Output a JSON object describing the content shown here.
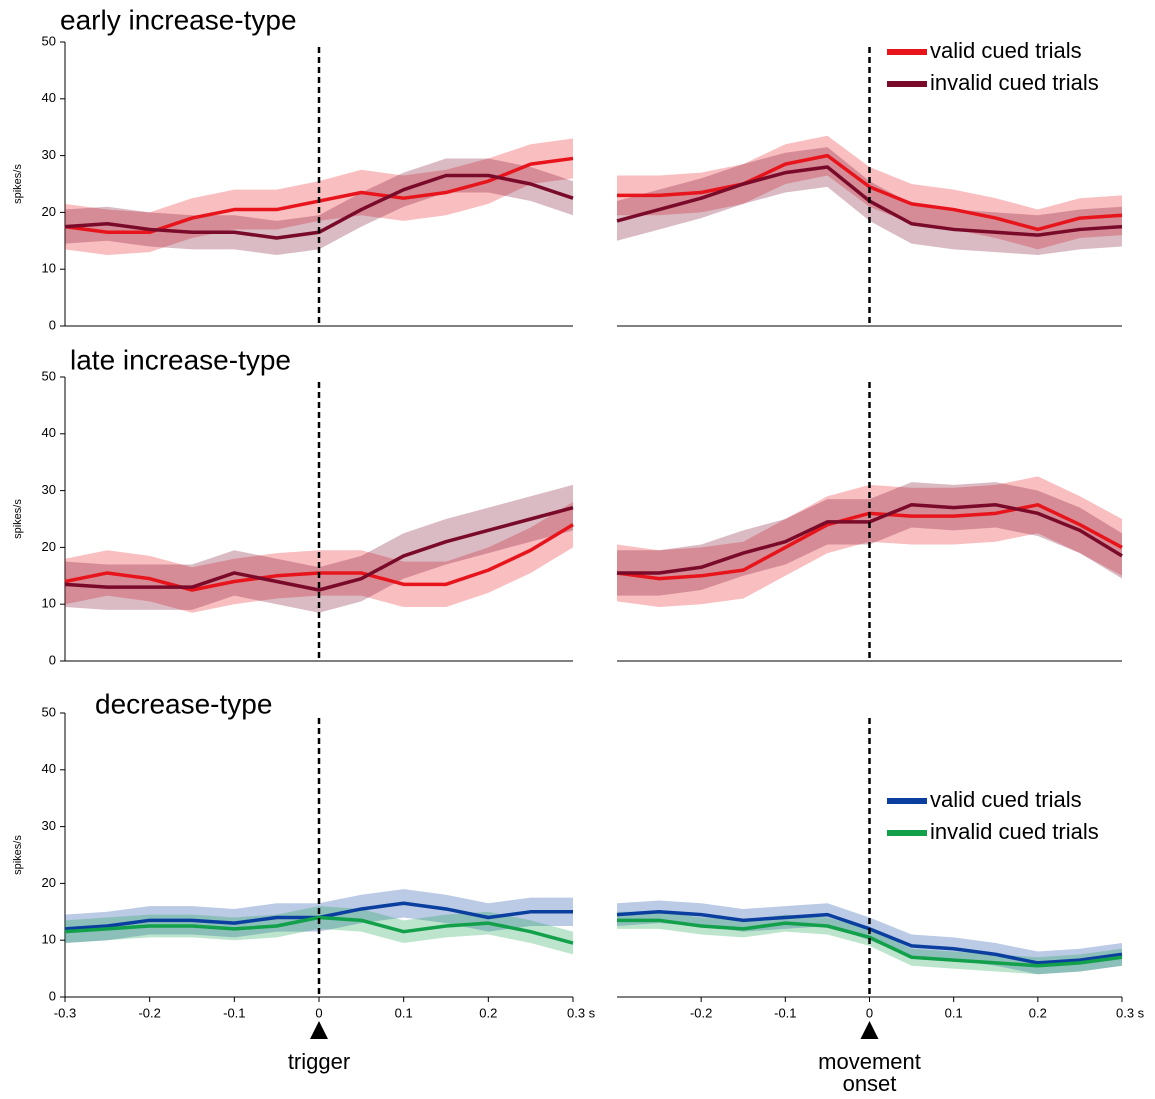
{
  "chart_data": [
    {
      "type": "line",
      "title": "early increase-type",
      "ylabel": "spikes/s",
      "x": [
        -0.3,
        -0.25,
        -0.2,
        -0.15,
        -0.1,
        -0.05,
        0,
        0.05,
        0.1,
        0.15,
        0.2,
        0.25,
        0.3
      ],
      "xlim": [
        -0.3,
        0.3
      ],
      "ylim": [
        0,
        50
      ],
      "yticks": [
        0,
        10,
        20,
        30,
        40,
        50
      ],
      "vline": 0,
      "series": [
        {
          "color": "#e8141c",
          "values": [
            17.5,
            16.5,
            16.5,
            19,
            20.5,
            20.5,
            22,
            23.5,
            22.5,
            23.5,
            25.5,
            28.5,
            29.5
          ],
          "error": [
            4,
            4,
            3.5,
            3.5,
            3.5,
            3.5,
            3.5,
            4,
            4,
            4,
            4,
            3.5,
            3.5
          ]
        },
        {
          "color": "#7a0a2a",
          "values": [
            17.5,
            18,
            17,
            16.5,
            16.5,
            15.5,
            16.5,
            20.5,
            24,
            26.5,
            26.5,
            25,
            22.5
          ],
          "error": [
            3,
            3,
            3,
            3,
            3,
            3,
            3,
            3,
            3,
            3,
            3,
            3,
            3
          ]
        }
      ]
    },
    {
      "type": "line",
      "x": [
        -0.3,
        -0.25,
        -0.2,
        -0.15,
        -0.1,
        -0.05,
        0,
        0.05,
        0.1,
        0.15,
        0.2,
        0.25,
        0.3
      ],
      "xlim": [
        -0.3,
        0.3
      ],
      "ylim": [
        0,
        50
      ],
      "vline": 0,
      "legend": "upper right",
      "series": [
        {
          "name": "valid cued trials",
          "color": "#e8141c",
          "values": [
            23,
            23,
            23.5,
            25,
            28.5,
            30,
            24.5,
            21.5,
            20.5,
            19,
            17,
            19,
            19.5
          ],
          "error": [
            3.5,
            3.5,
            3.5,
            3.5,
            3.5,
            3.5,
            3.5,
            3.5,
            3.5,
            3.5,
            3.5,
            3.5,
            3.5
          ]
        },
        {
          "name": "invalid cued trials",
          "color": "#7a0a2a",
          "values": [
            18.5,
            20.5,
            22.5,
            25,
            27,
            28,
            22,
            18,
            17,
            16.5,
            16,
            17,
            17.5
          ],
          "error": [
            3.5,
            3.5,
            3.5,
            3.5,
            3.5,
            3.5,
            3.5,
            3.5,
            3.5,
            3.5,
            3.5,
            3.5,
            3.5
          ]
        }
      ]
    },
    {
      "type": "line",
      "title": "late increase-type",
      "ylabel": "spikes/s",
      "x": [
        -0.3,
        -0.25,
        -0.2,
        -0.15,
        -0.1,
        -0.05,
        0,
        0.05,
        0.1,
        0.15,
        0.2,
        0.25,
        0.3
      ],
      "xlim": [
        -0.3,
        0.3
      ],
      "ylim": [
        0,
        50
      ],
      "yticks": [
        0,
        10,
        20,
        30,
        40,
        50
      ],
      "vline": 0,
      "series": [
        {
          "color": "#e8141c",
          "values": [
            14,
            15.5,
            14.5,
            12.5,
            14,
            15,
            15.5,
            15.5,
            13.5,
            13.5,
            16,
            19.5,
            24
          ],
          "error": [
            4,
            4,
            4,
            4,
            4,
            4,
            4,
            4,
            4,
            4,
            4,
            4,
            4
          ]
        },
        {
          "color": "#7a0a2a",
          "values": [
            13.5,
            13,
            13,
            13,
            15.5,
            14,
            12.5,
            14.5,
            18.5,
            21,
            23,
            25,
            27
          ],
          "error": [
            4,
            4,
            4,
            4,
            4,
            4,
            4,
            4,
            4,
            4,
            4,
            4,
            4
          ]
        }
      ]
    },
    {
      "type": "line",
      "x": [
        -0.3,
        -0.25,
        -0.2,
        -0.15,
        -0.1,
        -0.05,
        0,
        0.05,
        0.1,
        0.15,
        0.2,
        0.25,
        0.3
      ],
      "xlim": [
        -0.3,
        0.3
      ],
      "ylim": [
        0,
        50
      ],
      "vline": 0,
      "series": [
        {
          "color": "#e8141c",
          "values": [
            15.5,
            14.5,
            15,
            16,
            20,
            24,
            26,
            25.5,
            25.5,
            26,
            27.5,
            24,
            20
          ],
          "error": [
            5,
            5,
            5,
            5,
            5,
            5,
            5,
            5,
            5,
            5,
            5,
            5,
            5
          ]
        },
        {
          "color": "#7a0a2a",
          "values": [
            15.5,
            15.5,
            16.5,
            19,
            21,
            24.5,
            24.5,
            27.5,
            27,
            27.5,
            26,
            23,
            18.5
          ],
          "error": [
            4,
            4,
            4,
            4,
            4,
            4,
            4,
            4,
            4,
            4,
            4,
            4,
            4
          ]
        }
      ]
    },
    {
      "type": "line",
      "title": "decrease-type",
      "ylabel": "spikes/s",
      "annotation": "trigger",
      "x": [
        -0.3,
        -0.25,
        -0.2,
        -0.15,
        -0.1,
        -0.05,
        0,
        0.05,
        0.1,
        0.15,
        0.2,
        0.25,
        0.3
      ],
      "xlim": [
        -0.3,
        0.3
      ],
      "ylim": [
        0,
        50
      ],
      "yticks": [
        0,
        10,
        20,
        30,
        40,
        50
      ],
      "vline": 0,
      "xticks": [
        -0.3,
        -0.2,
        -0.1,
        0,
        0.1,
        0.2,
        {
          "value": 0.3,
          "label": "0.3 s"
        }
      ],
      "series": [
        {
          "color": "#0a3fa0",
          "values": [
            12,
            12.5,
            13.5,
            13.5,
            13,
            14,
            14,
            15.5,
            16.5,
            15.5,
            14,
            15,
            15
          ],
          "error": [
            2.5,
            2.5,
            2.5,
            2.5,
            2.5,
            2.5,
            2.5,
            2.5,
            2.5,
            2.5,
            2.5,
            2.5,
            2.5
          ]
        },
        {
          "color": "#12a04a",
          "values": [
            11.5,
            12,
            12.5,
            12.5,
            12,
            12.5,
            14,
            13.5,
            11.5,
            12.5,
            13,
            11.5,
            9.5
          ],
          "error": [
            2,
            2,
            2,
            2,
            2,
            2,
            2,
            2,
            2,
            2,
            2,
            2,
            2
          ]
        }
      ]
    },
    {
      "type": "line",
      "annotation": "movement onset",
      "legend": "center right",
      "x": [
        -0.3,
        -0.25,
        -0.2,
        -0.15,
        -0.1,
        -0.05,
        0,
        0.05,
        0.1,
        0.15,
        0.2,
        0.25,
        0.3
      ],
      "xlim": [
        -0.3,
        0.3
      ],
      "ylim": [
        0,
        50
      ],
      "vline": 0,
      "xticks": [
        -0.2,
        -0.1,
        0,
        0.1,
        0.2,
        {
          "value": 0.3,
          "label": "0.3 s"
        }
      ],
      "series": [
        {
          "name": "valid cued trials",
          "color": "#0a3fa0",
          "values": [
            14.5,
            15,
            14.5,
            13.5,
            14,
            14.5,
            12,
            9,
            8.5,
            7.5,
            6,
            6.5,
            7.5
          ],
          "error": [
            2,
            2,
            2,
            2,
            2,
            2,
            2,
            2,
            2,
            2,
            2,
            2,
            2
          ]
        },
        {
          "name": "invalid cued trials",
          "color": "#12a04a",
          "values": [
            13.5,
            13.5,
            12.5,
            12,
            13,
            12.5,
            10.5,
            7,
            6.5,
            6,
            5.5,
            6,
            7
          ],
          "error": [
            1.5,
            1.5,
            1.5,
            1.5,
            1.5,
            1.5,
            1.5,
            1.5,
            1.5,
            1.5,
            1.5,
            1.5,
            1.5
          ]
        }
      ]
    }
  ]
}
